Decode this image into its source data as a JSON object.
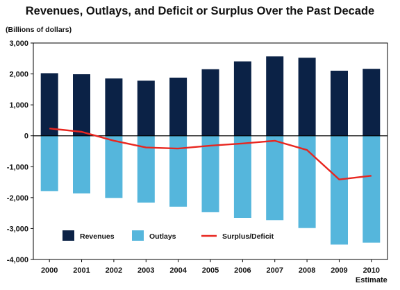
{
  "chart_data": {
    "type": "bar",
    "title": "Revenues, Outlays, and Deficit or Surplus Over the Past Decade",
    "unit_label": "(Billions of dollars)",
    "categories": [
      "2000",
      "2001",
      "2002",
      "2003",
      "2004",
      "2005",
      "2006",
      "2007",
      "2008",
      "2009",
      "2010"
    ],
    "category_note": "Estimate",
    "series": [
      {
        "name": "Revenues",
        "kind": "bar",
        "color": "#0b2246",
        "values": [
          2025,
          1991,
          1853,
          1782,
          1880,
          2153,
          2406,
          2568,
          2524,
          2105,
          2165
        ]
      },
      {
        "name": "Outlays",
        "kind": "bar",
        "color": "#55b6dc",
        "values": [
          -1789,
          -1863,
          -2011,
          -2160,
          -2293,
          -2472,
          -2655,
          -2729,
          -2983,
          -3518,
          -3456
        ]
      },
      {
        "name": "Surplus/Deficit",
        "kind": "line",
        "color": "#e8261f",
        "values": [
          236,
          128,
          -158,
          -378,
          -413,
          -318,
          -248,
          -161,
          -459,
          -1413,
          -1291
        ]
      }
    ],
    "yticks": [
      3000,
      2000,
      1000,
      0,
      -1000,
      -2000,
      -3000,
      -4000
    ],
    "ytick_labels": [
      "3,000",
      "2,000",
      "1,000",
      "0",
      "-1,000",
      "-2,000",
      "-3,000",
      "-4,000"
    ],
    "ylim": [
      -4000,
      3000
    ],
    "grid": false,
    "legend_position": "bottom-left inside plot"
  }
}
